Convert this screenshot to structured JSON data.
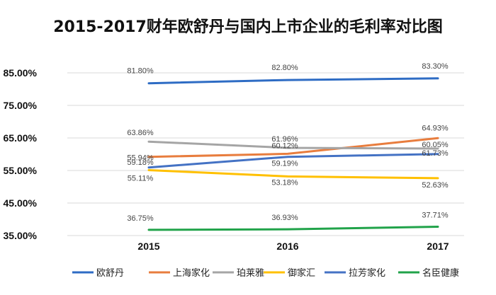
{
  "chart_data": {
    "type": "line",
    "title": "2015-2017财年欧舒丹与国内上市企业的毛利率对比图",
    "categories": [
      "2015",
      "2016",
      "2017"
    ],
    "ylim": [
      35,
      85
    ],
    "yticks": [
      "35.00%",
      "45.00%",
      "55.00%",
      "65.00%",
      "75.00%",
      "85.00%"
    ],
    "ytick_values": [
      35,
      45,
      55,
      65,
      75,
      85
    ],
    "legend_position": "bottom",
    "series": [
      {
        "name": "欧舒丹",
        "color": "#2e6cc4",
        "values": [
          81.8,
          82.8,
          83.3
        ],
        "labels": [
          "81.80%",
          "82.80%",
          "83.30%"
        ]
      },
      {
        "name": "上海家化",
        "color": "#e87d3e",
        "values": [
          59.18,
          60.12,
          64.93
        ],
        "labels": [
          "59.18%",
          "60.12%",
          "64.93%"
        ]
      },
      {
        "name": "珀莱雅",
        "color": "#a5a5a5",
        "values": [
          63.86,
          61.96,
          61.73
        ],
        "labels": [
          "63.86%",
          "61.96%",
          "61.73%"
        ]
      },
      {
        "name": "御家汇",
        "color": "#ffc000",
        "values": [
          55.11,
          53.18,
          52.63
        ],
        "labels": [
          "55.11%",
          "53.18%",
          "52.63%"
        ]
      },
      {
        "name": "拉芳家化",
        "color": "#4472c4",
        "values": [
          55.94,
          59.19,
          60.05
        ],
        "labels": [
          "55.94%",
          "59.19%",
          "60.05%"
        ]
      },
      {
        "name": "名臣健康",
        "color": "#21a34a",
        "values": [
          36.75,
          36.93,
          37.71
        ],
        "labels": [
          "36.75%",
          "36.93%",
          "37.71%"
        ]
      }
    ]
  }
}
